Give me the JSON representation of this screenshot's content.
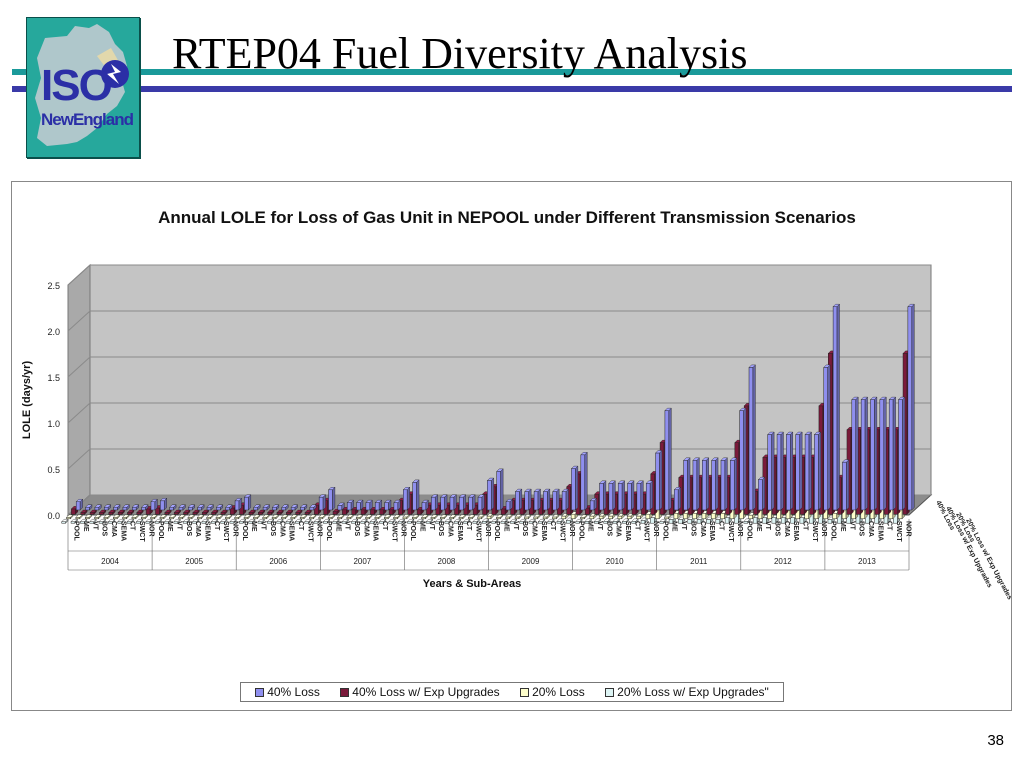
{
  "slide": {
    "title": "RTEP04 Fuel Diversity Analysis",
    "page_number": "38"
  },
  "logo": {
    "line1": "ISO",
    "line2": "NewEngland"
  },
  "chart_data": {
    "type": "bar",
    "title": "Annual LOLE for Loss of Gas Unit in NEPOOL under Different Transmission Scenarios",
    "ylabel": "LOLE (days/yr)",
    "xlabel": "Years & Sub-Areas",
    "ylim": [
      0,
      2.5
    ],
    "yticks": [
      "0.0",
      "0.5",
      "1.0",
      "1.5",
      "2.0",
      "2.5"
    ],
    "grid": true,
    "legend_position": "bottom",
    "years": [
      "2004",
      "2005",
      "2006",
      "2007",
      "2008",
      "2009",
      "2010",
      "2011",
      "2012",
      "2013"
    ],
    "subareas": [
      "POOL",
      "ME",
      "VT",
      "BOS",
      "CMA",
      "SEMA",
      "CT",
      "SWCT",
      "NOR"
    ],
    "series": [
      {
        "name": "40% Loss",
        "color": "#8f8fef",
        "values": [
          [
            0.09,
            0.03,
            0.03,
            0.03,
            0.03,
            0.03,
            0.03,
            0.03,
            0.09
          ],
          [
            0.1,
            0.03,
            0.03,
            0.03,
            0.03,
            0.03,
            0.03,
            0.03,
            0.1
          ],
          [
            0.14,
            0.03,
            0.03,
            0.03,
            0.03,
            0.03,
            0.03,
            0.03,
            0.14
          ],
          [
            0.22,
            0.05,
            0.08,
            0.08,
            0.08,
            0.08,
            0.08,
            0.08,
            0.22
          ],
          [
            0.3,
            0.08,
            0.14,
            0.14,
            0.14,
            0.14,
            0.14,
            0.14,
            0.32
          ],
          [
            0.42,
            0.09,
            0.2,
            0.2,
            0.2,
            0.2,
            0.2,
            0.2,
            0.45
          ],
          [
            0.6,
            0.1,
            0.29,
            0.29,
            0.29,
            0.29,
            0.29,
            0.29,
            0.62
          ],
          [
            1.08,
            0.22,
            0.54,
            0.54,
            0.54,
            0.54,
            0.54,
            0.54,
            1.08
          ],
          [
            1.55,
            0.33,
            0.82,
            0.82,
            0.82,
            0.82,
            0.82,
            0.82,
            1.55
          ],
          [
            2.21,
            0.52,
            1.2,
            1.2,
            1.2,
            1.2,
            1.2,
            1.2,
            2.21
          ]
        ]
      },
      {
        "name": "40% Loss w/ Exp Upgrades",
        "color": "#7a1a3a",
        "values": [
          [
            0.06,
            0.02,
            0.02,
            0.02,
            0.02,
            0.02,
            0.02,
            0.02,
            0.06
          ],
          [
            0.07,
            0.02,
            0.02,
            0.02,
            0.02,
            0.02,
            0.02,
            0.02,
            0.07
          ],
          [
            0.1,
            0.02,
            0.02,
            0.02,
            0.02,
            0.02,
            0.02,
            0.02,
            0.1
          ],
          [
            0.15,
            0.03,
            0.05,
            0.05,
            0.05,
            0.05,
            0.05,
            0.05,
            0.15
          ],
          [
            0.22,
            0.05,
            0.1,
            0.1,
            0.1,
            0.1,
            0.1,
            0.1,
            0.22
          ],
          [
            0.3,
            0.06,
            0.15,
            0.15,
            0.15,
            0.15,
            0.15,
            0.15,
            0.3
          ],
          [
            0.44,
            0.07,
            0.22,
            0.22,
            0.22,
            0.22,
            0.22,
            0.22,
            0.44
          ],
          [
            0.78,
            0.15,
            0.4,
            0.4,
            0.4,
            0.4,
            0.4,
            0.4,
            0.78
          ],
          [
            1.18,
            0.25,
            0.62,
            0.62,
            0.62,
            0.62,
            0.62,
            0.62,
            1.18
          ],
          [
            1.75,
            0.4,
            0.92,
            0.92,
            0.92,
            0.92,
            0.92,
            0.92,
            1.75
          ]
        ]
      },
      {
        "name": "20% Loss",
        "color": "#ffffcc",
        "values": [
          [
            0.0,
            0.0,
            0.0,
            0.0,
            0.0,
            0.0,
            0.0,
            0.0,
            0.0
          ],
          [
            0.0,
            0.0,
            0.0,
            0.0,
            0.0,
            0.0,
            0.0,
            0.0,
            0.0
          ],
          [
            0.0,
            0.0,
            0.0,
            0.0,
            0.0,
            0.0,
            0.0,
            0.0,
            0.0
          ],
          [
            0.01,
            0.0,
            0.0,
            0.0,
            0.0,
            0.0,
            0.0,
            0.0,
            0.01
          ],
          [
            0.02,
            0.0,
            0.01,
            0.01,
            0.01,
            0.01,
            0.01,
            0.01,
            0.02
          ],
          [
            0.03,
            0.01,
            0.02,
            0.02,
            0.02,
            0.02,
            0.02,
            0.02,
            0.03
          ],
          [
            0.05,
            0.01,
            0.03,
            0.03,
            0.03,
            0.03,
            0.03,
            0.03,
            0.05
          ],
          [
            0.1,
            0.02,
            0.06,
            0.06,
            0.06,
            0.06,
            0.06,
            0.06,
            0.1
          ],
          [
            0.16,
            0.04,
            0.09,
            0.09,
            0.09,
            0.09,
            0.09,
            0.09,
            0.16
          ],
          [
            0.26,
            0.06,
            0.14,
            0.14,
            0.14,
            0.14,
            0.14,
            0.14,
            0.26
          ]
        ]
      },
      {
        "name": "20% Loss w/ Exp Upgrades\"",
        "color": "#ddf4f4",
        "values": [
          [
            0.0,
            0.0,
            0.0,
            0.0,
            0.0,
            0.0,
            0.0,
            0.0,
            0.0
          ],
          [
            0.0,
            0.0,
            0.0,
            0.0,
            0.0,
            0.0,
            0.0,
            0.0,
            0.0
          ],
          [
            0.0,
            0.0,
            0.0,
            0.0,
            0.0,
            0.0,
            0.0,
            0.0,
            0.0
          ],
          [
            0.0,
            0.0,
            0.0,
            0.0,
            0.0,
            0.0,
            0.0,
            0.0,
            0.0
          ],
          [
            0.01,
            0.0,
            0.0,
            0.0,
            0.0,
            0.0,
            0.0,
            0.0,
            0.01
          ],
          [
            0.02,
            0.0,
            0.01,
            0.01,
            0.01,
            0.01,
            0.01,
            0.01,
            0.02
          ],
          [
            0.03,
            0.01,
            0.02,
            0.02,
            0.02,
            0.02,
            0.02,
            0.02,
            0.03
          ],
          [
            0.06,
            0.01,
            0.04,
            0.04,
            0.04,
            0.04,
            0.04,
            0.04,
            0.06
          ],
          [
            0.1,
            0.02,
            0.06,
            0.06,
            0.06,
            0.06,
            0.06,
            0.06,
            0.1
          ],
          [
            0.18,
            0.04,
            0.1,
            0.1,
            0.1,
            0.1,
            0.1,
            0.1,
            0.18
          ]
        ]
      }
    ],
    "depth_labels": [
      "40% Loss",
      "40% Loss w/ Exp Upgrades",
      "20% Loss",
      "20% Loss w/ Exp Upgrades\""
    ]
  }
}
